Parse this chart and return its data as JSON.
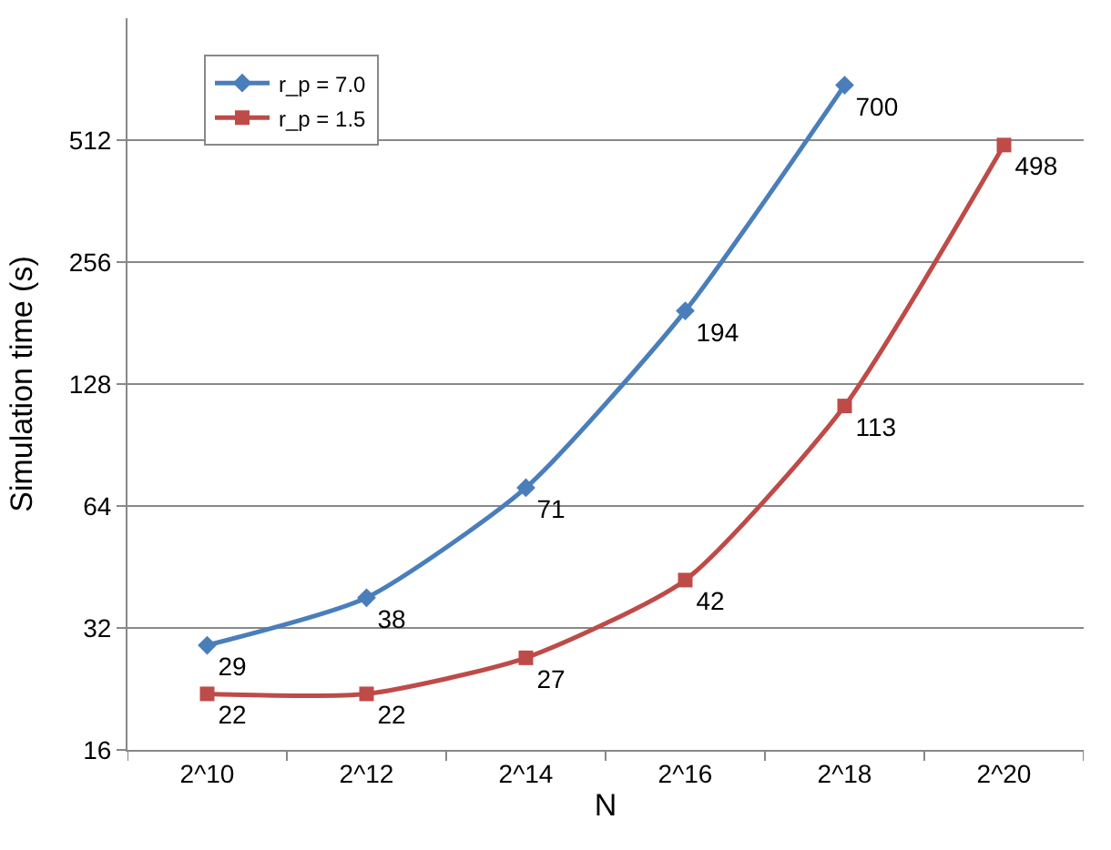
{
  "chart_data": {
    "type": "line",
    "xlabel": "N",
    "ylabel": "Simulation time (s)",
    "categories": [
      "2^10",
      "2^12",
      "2^14",
      "2^16",
      "2^18",
      "2^20"
    ],
    "series": [
      {
        "name": "r_p = 7.0",
        "color": "#4a7ebb",
        "marker": "diamond",
        "values": [
          29,
          38,
          71,
          194,
          700,
          null
        ]
      },
      {
        "name": "r_p = 1.5",
        "color": "#be4b48",
        "marker": "square",
        "values": [
          22,
          22,
          27,
          42,
          113,
          498
        ]
      }
    ],
    "log": "y",
    "ylim": [
      16,
      1024
    ],
    "yticks": [
      16,
      32,
      64,
      128,
      256,
      512
    ],
    "grid": "y",
    "legend": "top left",
    "line_style": "solid",
    "data_labels": true
  }
}
